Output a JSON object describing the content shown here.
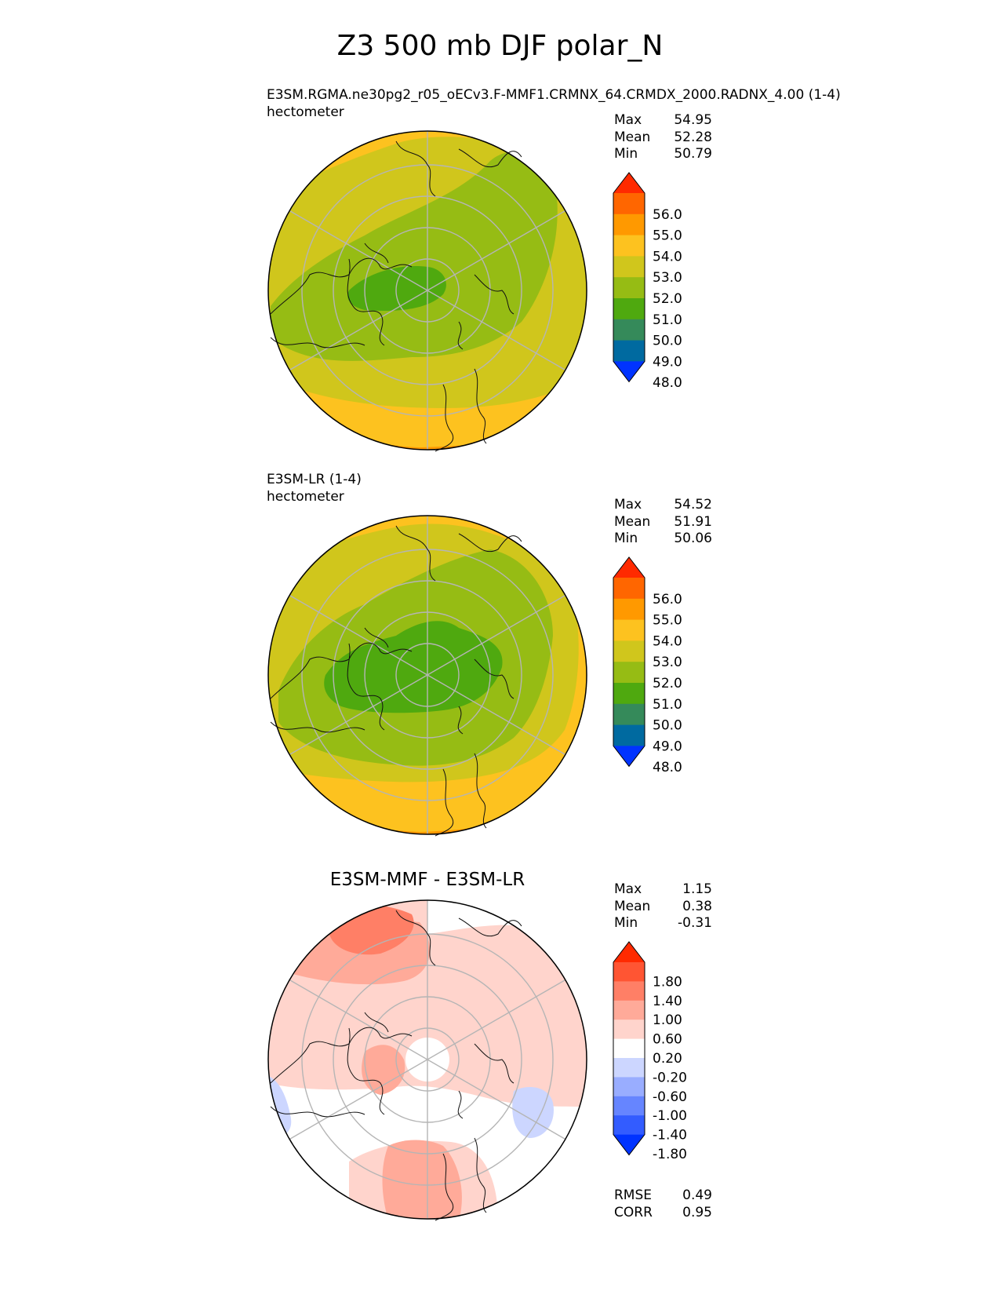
{
  "title": "Z3 500 mb DJF polar_N",
  "panels": [
    {
      "title": "E3SM.RGMA.ne30pg2_r05_oECv3.F-MMF1.CRMNX_64.CRMDX_2000.RADNX_4.00 (1-4)",
      "units": "hectometer",
      "stats": [
        {
          "label": "Max",
          "value": "54.95"
        },
        {
          "label": "Mean",
          "value": "52.28"
        },
        {
          "label": "Min",
          "value": "50.79"
        }
      ]
    },
    {
      "title": "E3SM-LR (1-4)",
      "units": "hectometer",
      "stats": [
        {
          "label": "Max",
          "value": "54.52"
        },
        {
          "label": "Mean",
          "value": "51.91"
        },
        {
          "label": "Min",
          "value": "50.06"
        }
      ]
    },
    {
      "title": "E3SM-MMF - E3SM-LR",
      "stats": [
        {
          "label": "Max",
          "value": "1.15"
        },
        {
          "label": "Mean",
          "value": "0.38"
        },
        {
          "label": "Min",
          "value": "-0.31"
        }
      ],
      "extra_stats": [
        {
          "label": "RMSE",
          "value": "0.49"
        },
        {
          "label": "CORR",
          "value": "0.95"
        }
      ]
    }
  ],
  "colorbars": {
    "field": {
      "ticks": [
        "56.0",
        "55.0",
        "54.0",
        "53.0",
        "52.0",
        "51.0",
        "50.0",
        "49.0",
        "48.0"
      ],
      "colors": [
        "#ff2a00",
        "#ff6600",
        "#ff9900",
        "#fdc21f",
        "#d0c61c",
        "#96bc14",
        "#4fa90f",
        "#358a5a",
        "#006aa0",
        "#0033ff"
      ]
    },
    "diff": {
      "ticks": [
        "1.80",
        "1.40",
        "1.00",
        "0.60",
        "0.20",
        "-0.20",
        "-0.60",
        "-1.00",
        "-1.40",
        "-1.80"
      ],
      "colors": [
        "#ff2a00",
        "#ff5533",
        "#ff7f66",
        "#ffaa99",
        "#ffd4cc",
        "#ffffff",
        "#ccd6ff",
        "#99adff",
        "#6685ff",
        "#335cff",
        "#0033ff"
      ]
    }
  },
  "chart_data": [
    {
      "type": "heatmap",
      "projection": "north polar stereographic",
      "title": "E3SM.RGMA.ne30pg2_r05_oECv3.F-MMF1.CRMNX_64.CRMDX_2000.RADNX_4.00 (1-4)",
      "units": "hectometer",
      "max": 54.95,
      "mean": 52.28,
      "min": 50.79,
      "levels": [
        48,
        49,
        50,
        51,
        52,
        53,
        54,
        55,
        56
      ],
      "extend": "both"
    },
    {
      "type": "heatmap",
      "projection": "north polar stereographic",
      "title": "E3SM-LR (1-4)",
      "units": "hectometer",
      "max": 54.52,
      "mean": 51.91,
      "min": 50.06,
      "levels": [
        48,
        49,
        50,
        51,
        52,
        53,
        54,
        55,
        56
      ],
      "extend": "both"
    },
    {
      "type": "heatmap",
      "projection": "north polar stereographic",
      "title": "E3SM-MMF - E3SM-LR",
      "max": 1.15,
      "mean": 0.38,
      "min": -0.31,
      "rmse": 0.49,
      "corr": 0.95,
      "levels": [
        -1.8,
        -1.4,
        -1.0,
        -0.6,
        -0.2,
        0.2,
        0.6,
        1.0,
        1.4,
        1.8
      ],
      "extend": "both"
    }
  ]
}
